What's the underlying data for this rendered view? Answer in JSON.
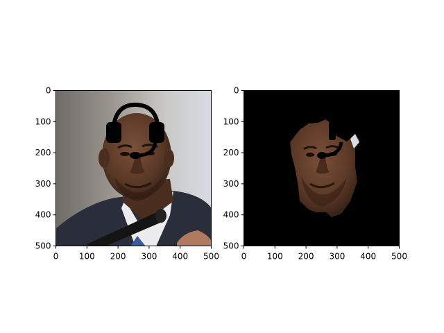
{
  "chart_data": [
    {
      "type": "image",
      "panel": "left",
      "content": "original photo with headset overlay",
      "x_ticks": [
        0,
        100,
        200,
        300,
        400,
        500
      ],
      "y_ticks": [
        0,
        100,
        200,
        300,
        400,
        500
      ],
      "xlim": [
        0,
        500
      ],
      "ylim": [
        500,
        0
      ],
      "background": "photo",
      "grid": false
    },
    {
      "type": "image",
      "panel": "right",
      "content": "face segmentation mask with headset overlay",
      "x_ticks": [
        0,
        100,
        200,
        300,
        400,
        500
      ],
      "y_ticks": [
        0,
        100,
        200,
        300,
        400,
        500
      ],
      "xlim": [
        0,
        500
      ],
      "ylim": [
        500,
        0
      ],
      "background": "#000000",
      "grid": false
    }
  ],
  "colors": {
    "skin": "#5a3a2a",
    "skin_shadow": "#3a2418",
    "suit": "#2a2e3a",
    "shirt": "#e8e8ea",
    "tie": "#3a5aa0",
    "mic": "#1a1a1a",
    "headset": "#000000",
    "wall": "#c8c6c0",
    "wall_dark": "#8a8580"
  },
  "icons": [
    "headset-overlay",
    "microphone"
  ]
}
